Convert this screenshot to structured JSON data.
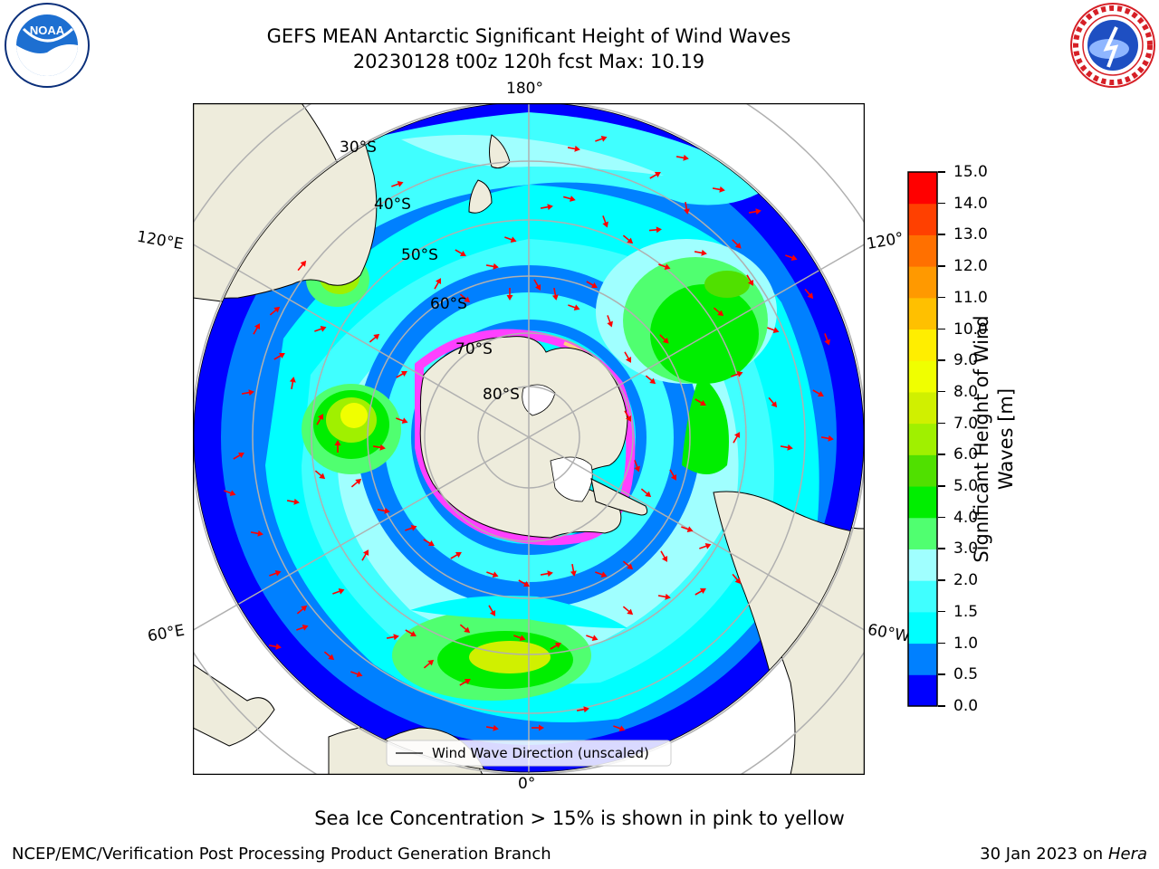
{
  "header": {
    "title_line1": "GEFS MEAN Antarctic Significant Height of Wind Waves",
    "title_line2": "20230128 t00z 120h fcst   Max: 10.19"
  },
  "logos": {
    "left": {
      "name": "noaa-logo",
      "text": "NOAA",
      "ring_text": "NATIONAL OCEANIC AND ATMOSPHERIC ADMINISTRATION · U.S. DEPARTMENT OF COMMERCE"
    },
    "right": {
      "name": "nws-logo",
      "ring_text": "NATIONAL WEATHER SERVICE"
    }
  },
  "map": {
    "projection": "south-polar-stereographic",
    "lon_labels": {
      "top": "180°",
      "bottom": "0°",
      "left_upper": "120°E",
      "left_lower": "60°E",
      "right_upper": "120°",
      "right_lower": "60°W"
    },
    "lat_labels": [
      "30°S",
      "40°S",
      "50°S",
      "60°S",
      "70°S",
      "80°S"
    ],
    "legend_label": "Wind Wave Direction (unscaled)",
    "arrow_color": "#ff0000",
    "land_color": "#eeecdc",
    "ocean_low_color": "#0000ff"
  },
  "colorbar": {
    "label": "Significant Height of Wind Waves [m]",
    "ticks": [
      "0.0",
      "0.5",
      "1.0",
      "1.5",
      "2.0",
      "3.0",
      "4.0",
      "5.0",
      "6.0",
      "7.0",
      "8.0",
      "9.0",
      "10.0",
      "11.0",
      "12.0",
      "13.0",
      "14.0",
      "15.0"
    ],
    "colors": [
      "#0000ff",
      "#0080ff",
      "#00ffff",
      "#40ffff",
      "#a0ffff",
      "#50ff70",
      "#00ee00",
      "#50e000",
      "#a0f000",
      "#d0f000",
      "#f0ff00",
      "#ffee00",
      "#ffc000",
      "#ff9900",
      "#ff7000",
      "#ff4000",
      "#ff0000"
    ]
  },
  "footer": {
    "note": "Sea Ice Concentration > 15% is shown in pink to yellow",
    "left": "NCEP/EMC/Verification Post Processing Product Generation Branch",
    "right_prefix": "30 Jan 2023 on ",
    "right_italic": "Hera"
  }
}
